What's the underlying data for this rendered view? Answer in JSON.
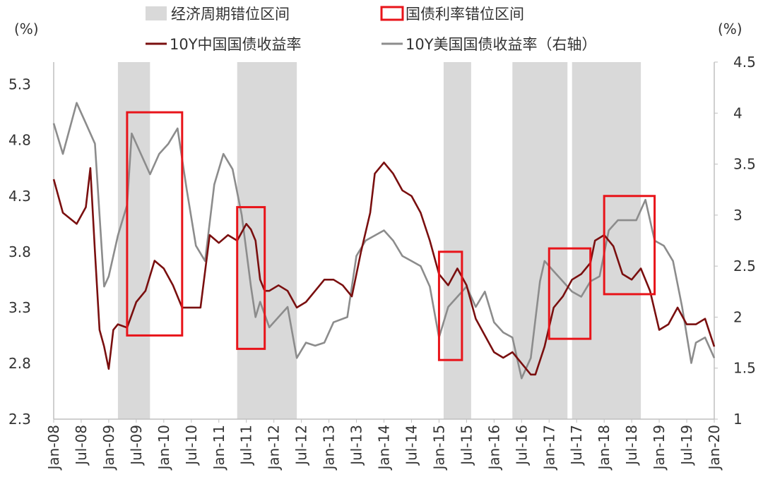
{
  "chart_data": {
    "type": "line",
    "title": "",
    "left_axis": {
      "unit_label": "(%)",
      "min": 2.3,
      "max": 5.5,
      "ticks": [
        "2.3",
        "2.8",
        "3.3",
        "3.8",
        "4.3",
        "4.8",
        "5.3"
      ]
    },
    "right_axis": {
      "unit_label": "(%)",
      "min": 1.0,
      "max": 4.5,
      "ticks": [
        "1",
        "1.5",
        "2",
        "2.5",
        "3",
        "3.5",
        "4",
        "4.5"
      ]
    },
    "x_axis": {
      "start": "2008-01",
      "end": "2020-01",
      "tick_labels": [
        "Jan-08",
        "Jul-08",
        "Jan-09",
        "Jul-09",
        "Jan-10",
        "Jul-10",
        "Jan-11",
        "Jul-11",
        "Jan-12",
        "Jul-12",
        "Jan-13",
        "Jul-13",
        "Jan-14",
        "Jul-14",
        "Jan-15",
        "Jul-15",
        "Jan-16",
        "Jul-16",
        "Jan-17",
        "Jul-17",
        "Jan-18",
        "Jul-18",
        "Jan-19",
        "Jul-19",
        "Jan-20"
      ]
    },
    "legend": [
      {
        "name": "经济周期错位区间",
        "kind": "shaded",
        "color": "#d9d9d9"
      },
      {
        "name": "国债利率错位区间",
        "kind": "box",
        "color": "#e8141a"
      },
      {
        "name": "10Y中国国债收益率",
        "kind": "line",
        "color": "#7a0f0f"
      },
      {
        "name": "10Y美国国债收益率（右轴）",
        "kind": "line",
        "color": "#8c8c8c"
      }
    ],
    "shaded_periods": [
      [
        "2009-03",
        "2009-10"
      ],
      [
        "2011-05",
        "2012-06"
      ],
      [
        "2015-02",
        "2015-08"
      ],
      [
        "2016-05",
        "2017-05"
      ],
      [
        "2017-06",
        "2018-09"
      ]
    ],
    "box_periods": [
      {
        "start": "2009-05",
        "end": "2010-05",
        "y_low": 3.05,
        "y_high": 5.05
      },
      {
        "start": "2011-05",
        "end": "2011-11",
        "y_low": 2.93,
        "y_high": 4.2
      },
      {
        "start": "2015-01",
        "end": "2015-06",
        "y_low": 2.83,
        "y_high": 3.8
      },
      {
        "start": "2017-01",
        "end": "2017-10",
        "y_low": 3.02,
        "y_high": 3.83
      },
      {
        "start": "2018-01",
        "end": "2018-12",
        "y_low": 3.42,
        "y_high": 4.3
      }
    ],
    "series": [
      {
        "name": "10Y中国国债收益率",
        "axis": "left",
        "x": [
          "2008-01",
          "2008-03",
          "2008-06",
          "2008-08",
          "2008-09",
          "2008-10",
          "2008-11",
          "2008-12",
          "2009-01",
          "2009-02",
          "2009-03",
          "2009-05",
          "2009-07",
          "2009-09",
          "2009-11",
          "2010-01",
          "2010-03",
          "2010-05",
          "2010-07",
          "2010-09",
          "2010-11",
          "2011-01",
          "2011-03",
          "2011-05",
          "2011-07",
          "2011-08",
          "2011-09",
          "2011-10",
          "2011-11",
          "2011-12",
          "2012-02",
          "2012-04",
          "2012-06",
          "2012-08",
          "2012-10",
          "2012-12",
          "2013-02",
          "2013-04",
          "2013-06",
          "2013-08",
          "2013-10",
          "2013-11",
          "2014-01",
          "2014-03",
          "2014-05",
          "2014-07",
          "2014-09",
          "2014-11",
          "2015-01",
          "2015-03",
          "2015-05",
          "2015-07",
          "2015-09",
          "2015-11",
          "2016-01",
          "2016-03",
          "2016-05",
          "2016-07",
          "2016-09",
          "2016-10",
          "2016-12",
          "2017-02",
          "2017-04",
          "2017-06",
          "2017-08",
          "2017-10",
          "2017-11",
          "2018-01",
          "2018-03",
          "2018-05",
          "2018-07",
          "2018-09",
          "2018-11",
          "2019-01",
          "2019-03",
          "2019-05",
          "2019-07",
          "2019-09",
          "2019-11",
          "2020-01"
        ],
        "values": [
          4.45,
          4.15,
          4.05,
          4.2,
          4.55,
          3.8,
          3.1,
          2.95,
          2.75,
          3.1,
          3.15,
          3.12,
          3.35,
          3.45,
          3.72,
          3.65,
          3.5,
          3.3,
          3.3,
          3.3,
          3.95,
          3.88,
          3.95,
          3.9,
          4.05,
          4.0,
          3.9,
          3.55,
          3.45,
          3.45,
          3.5,
          3.45,
          3.3,
          3.35,
          3.45,
          3.55,
          3.55,
          3.5,
          3.4,
          3.8,
          4.15,
          4.5,
          4.6,
          4.5,
          4.35,
          4.3,
          4.15,
          3.9,
          3.6,
          3.5,
          3.65,
          3.5,
          3.2,
          3.05,
          2.9,
          2.85,
          2.9,
          2.8,
          2.7,
          2.7,
          2.95,
          3.3,
          3.4,
          3.55,
          3.6,
          3.7,
          3.9,
          3.95,
          3.85,
          3.6,
          3.55,
          3.65,
          3.45,
          3.1,
          3.15,
          3.3,
          3.15,
          3.15,
          3.2,
          2.95
        ]
      },
      {
        "name": "10Y美国国债收益率（右轴）",
        "axis": "right",
        "x": [
          "2008-01",
          "2008-03",
          "2008-06",
          "2008-08",
          "2008-10",
          "2008-12",
          "2009-01",
          "2009-03",
          "2009-05",
          "2009-06",
          "2009-08",
          "2009-10",
          "2009-12",
          "2010-02",
          "2010-04",
          "2010-06",
          "2010-08",
          "2010-10",
          "2010-12",
          "2011-02",
          "2011-04",
          "2011-06",
          "2011-08",
          "2011-09",
          "2011-10",
          "2011-12",
          "2012-02",
          "2012-04",
          "2012-06",
          "2012-08",
          "2012-10",
          "2012-12",
          "2013-02",
          "2013-05",
          "2013-07",
          "2013-09",
          "2013-11",
          "2014-01",
          "2014-03",
          "2014-05",
          "2014-07",
          "2014-09",
          "2014-11",
          "2015-01",
          "2015-03",
          "2015-05",
          "2015-07",
          "2015-09",
          "2015-11",
          "2016-01",
          "2016-03",
          "2016-05",
          "2016-07",
          "2016-09",
          "2016-11",
          "2016-12",
          "2017-02",
          "2017-04",
          "2017-06",
          "2017-08",
          "2017-10",
          "2017-12",
          "2018-02",
          "2018-04",
          "2018-06",
          "2018-08",
          "2018-10",
          "2018-12",
          "2019-02",
          "2019-04",
          "2019-06",
          "2019-08",
          "2019-09",
          "2019-11",
          "2020-01"
        ],
        "values": [
          3.9,
          3.6,
          4.1,
          3.9,
          3.7,
          2.3,
          2.4,
          2.8,
          3.1,
          3.8,
          3.6,
          3.4,
          3.6,
          3.7,
          3.85,
          3.25,
          2.7,
          2.55,
          3.3,
          3.6,
          3.45,
          3.0,
          2.3,
          2.0,
          2.15,
          1.9,
          2.0,
          2.1,
          1.6,
          1.75,
          1.72,
          1.75,
          1.95,
          2.0,
          2.6,
          2.75,
          2.8,
          2.85,
          2.75,
          2.6,
          2.55,
          2.5,
          2.3,
          1.8,
          2.1,
          2.2,
          2.3,
          2.1,
          2.25,
          1.95,
          1.85,
          1.8,
          1.4,
          1.6,
          2.35,
          2.55,
          2.45,
          2.35,
          2.25,
          2.2,
          2.35,
          2.4,
          2.85,
          2.95,
          2.95,
          2.95,
          3.15,
          2.75,
          2.7,
          2.55,
          2.1,
          1.55,
          1.75,
          1.8,
          1.6
        ]
      }
    ]
  }
}
